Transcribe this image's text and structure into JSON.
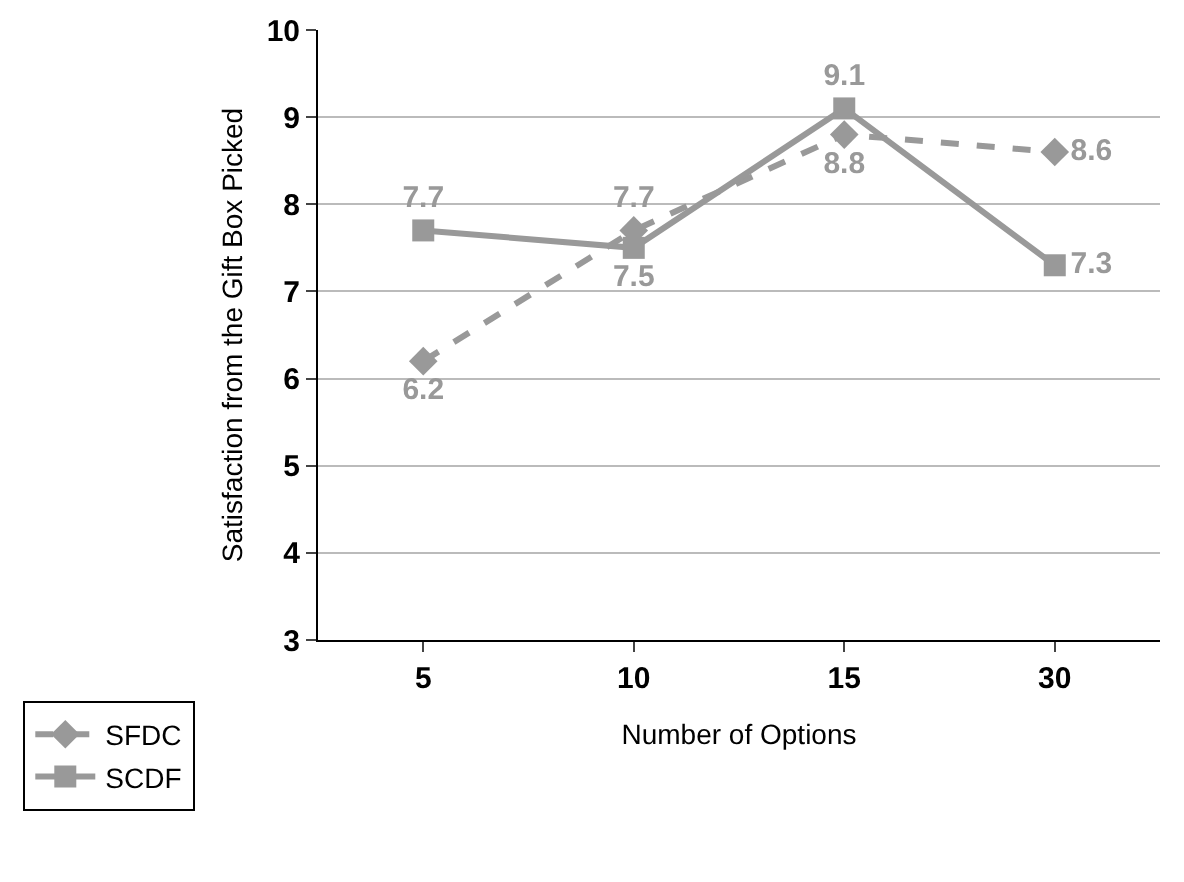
{
  "chart_data": {
    "type": "line",
    "xlabel": "Number of Options",
    "ylabel": "Satisfaction from the Gift Box Picked",
    "categories": [
      "5",
      "10",
      "15",
      "30"
    ],
    "series": [
      {
        "name": "SFDC",
        "color": "#999999",
        "values": [
          6.2,
          7.7,
          8.8,
          8.6
        ],
        "marker": "diamond",
        "line_style": "dashed"
      },
      {
        "name": "SCDF",
        "color": "#999999",
        "values": [
          7.7,
          7.5,
          9.1,
          7.3
        ],
        "marker": "square",
        "line_style": "solid"
      }
    ],
    "ylim": [
      3,
      10
    ],
    "yticks": [
      3,
      4,
      5,
      6,
      7,
      8,
      9,
      10
    ],
    "grid": "y",
    "legend": "bottom left",
    "data_labels": true
  }
}
